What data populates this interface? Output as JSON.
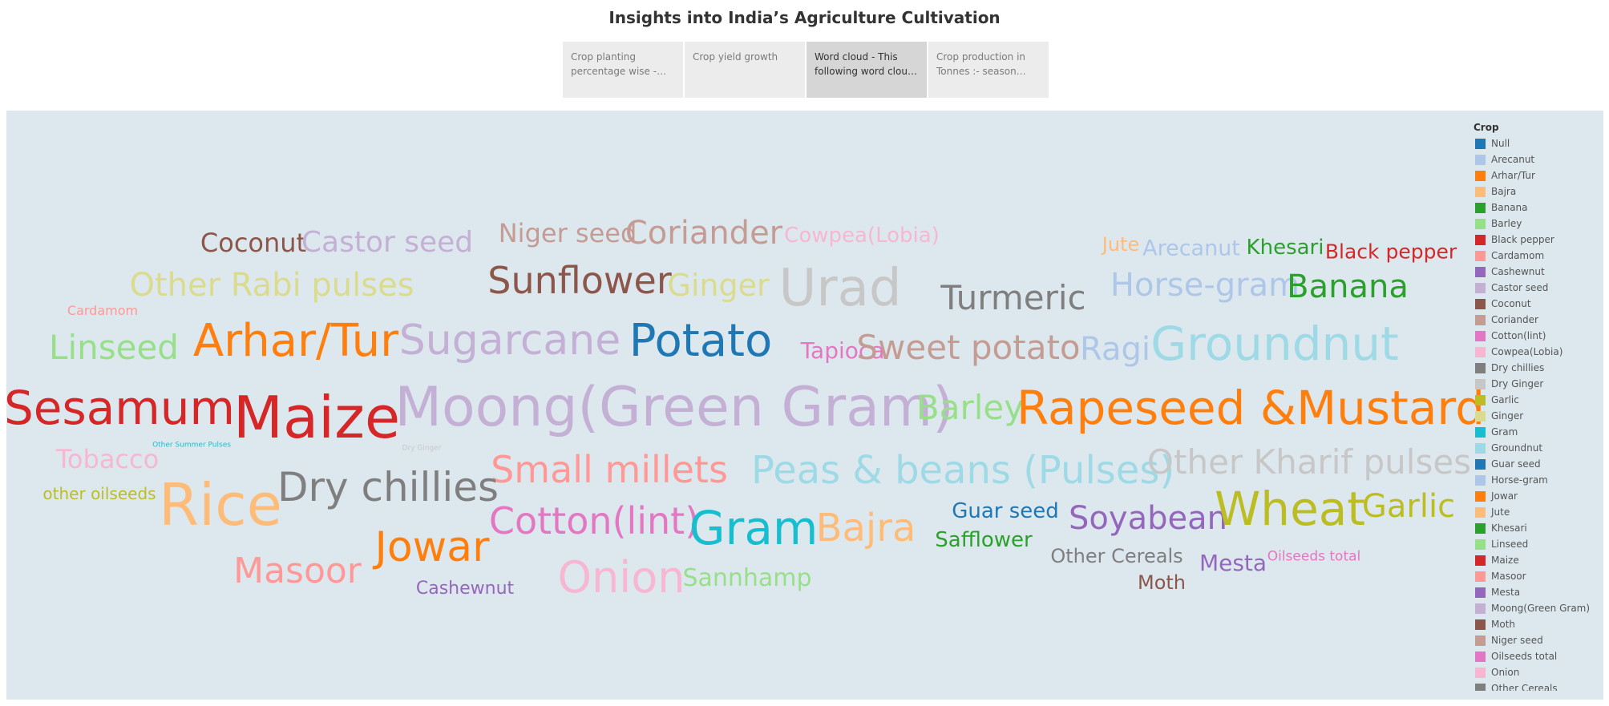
{
  "title": "Insights into India’s Agriculture Cultivation",
  "tabs": [
    {
      "label": "Crop planting percentage wise - This following",
      "active": false
    },
    {
      "label": "Crop yield growth",
      "active": false
    },
    {
      "label": "Word cloud - This following word cloud shows",
      "active": true
    },
    {
      "label": "Crop production in Tonnes :- season wise production",
      "active": false
    }
  ],
  "legend": {
    "title": "Crop",
    "items": [
      {
        "label": "Null",
        "color": "#1f77b4"
      },
      {
        "label": "Arecanut",
        "color": "#aec7e8"
      },
      {
        "label": "Arhar/Tur",
        "color": "#ff7f0e"
      },
      {
        "label": "Bajra",
        "color": "#ffbb78"
      },
      {
        "label": "Banana",
        "color": "#2ca02c"
      },
      {
        "label": "Barley",
        "color": "#98df8a"
      },
      {
        "label": "Black pepper",
        "color": "#d62728"
      },
      {
        "label": "Cardamom",
        "color": "#ff9896"
      },
      {
        "label": "Cashewnut",
        "color": "#9467bd"
      },
      {
        "label": "Castor seed",
        "color": "#c5b0d5"
      },
      {
        "label": "Coconut",
        "color": "#8c564b"
      },
      {
        "label": "Coriander",
        "color": "#c49c94"
      },
      {
        "label": "Cotton(lint)",
        "color": "#e377c2"
      },
      {
        "label": "Cowpea(Lobia)",
        "color": "#f7b6d2"
      },
      {
        "label": "Dry chillies",
        "color": "#7f7f7f"
      },
      {
        "label": "Dry Ginger",
        "color": "#c7c7c7"
      },
      {
        "label": "Garlic",
        "color": "#bcbd22"
      },
      {
        "label": "Ginger",
        "color": "#dbdb8d"
      },
      {
        "label": "Gram",
        "color": "#17becf"
      },
      {
        "label": "Groundnut",
        "color": "#9edae5"
      },
      {
        "label": "Guar seed",
        "color": "#1f77b4"
      },
      {
        "label": "Horse-gram",
        "color": "#aec7e8"
      },
      {
        "label": "Jowar",
        "color": "#ff7f0e"
      },
      {
        "label": "Jute",
        "color": "#ffbb78"
      },
      {
        "label": "Khesari",
        "color": "#2ca02c"
      },
      {
        "label": "Linseed",
        "color": "#98df8a"
      },
      {
        "label": "Maize",
        "color": "#d62728"
      },
      {
        "label": "Masoor",
        "color": "#ff9896"
      },
      {
        "label": "Mesta",
        "color": "#9467bd"
      },
      {
        "label": "Moong(Green Gram)",
        "color": "#c5b0d5"
      },
      {
        "label": "Moth",
        "color": "#8c564b"
      },
      {
        "label": "Niger seed",
        "color": "#c49c94"
      },
      {
        "label": "Oilseeds total",
        "color": "#e377c2"
      },
      {
        "label": "Onion",
        "color": "#f7b6d2"
      },
      {
        "label": "Other Cereals",
        "color": "#7f7f7f"
      }
    ]
  },
  "chart_data": {
    "type": "wordcloud",
    "title": "",
    "size_field": "relative word size",
    "color_field": "Crop",
    "words": [
      {
        "text": "Coconut",
        "color": "#8c564b",
        "size": 32
      },
      {
        "text": "Castor seed",
        "color": "#c5b0d5",
        "size": 36
      },
      {
        "text": "Niger seed",
        "color": "#c49c94",
        "size": 32
      },
      {
        "text": "Coriander",
        "color": "#c49c94",
        "size": 40
      },
      {
        "text": "Cowpea(Lobia)",
        "color": "#f7b6d2",
        "size": 26
      },
      {
        "text": "Jute",
        "color": "#ffbb78",
        "size": 24
      },
      {
        "text": "Arecanut",
        "color": "#aec7e8",
        "size": 27
      },
      {
        "text": "Khesari",
        "color": "#2ca02c",
        "size": 26
      },
      {
        "text": "Black pepper",
        "color": "#d62728",
        "size": 25
      },
      {
        "text": "Other Rabi pulses",
        "color": "#dbdb8d",
        "size": 40
      },
      {
        "text": "Sunflower",
        "color": "#8c564b",
        "size": 46
      },
      {
        "text": "Ginger",
        "color": "#dbdb8d",
        "size": 38
      },
      {
        "text": "Urad",
        "color": "#c7c7c7",
        "size": 64
      },
      {
        "text": "Turmeric",
        "color": "#7f7f7f",
        "size": 42
      },
      {
        "text": "Horse-gram",
        "color": "#aec7e8",
        "size": 40
      },
      {
        "text": "Banana",
        "color": "#2ca02c",
        "size": 40
      },
      {
        "text": "Cardamom",
        "color": "#ff9896",
        "size": 16
      },
      {
        "text": "Linseed",
        "color": "#98df8a",
        "size": 42
      },
      {
        "text": "Arhar/Tur",
        "color": "#ff7f0e",
        "size": 56
      },
      {
        "text": "Sugarcane",
        "color": "#c5b0d5",
        "size": 52
      },
      {
        "text": "Potato",
        "color": "#1f77b4",
        "size": 56
      },
      {
        "text": "Tapioca",
        "color": "#e377c2",
        "size": 28
      },
      {
        "text": "Sweet potato",
        "color": "#c49c94",
        "size": 42
      },
      {
        "text": "Ragi",
        "color": "#aec7e8",
        "size": 40
      },
      {
        "text": "Groundnut",
        "color": "#9edae5",
        "size": 58
      },
      {
        "text": "Sesamum",
        "color": "#d62728",
        "size": 58
      },
      {
        "text": "Maize",
        "color": "#d62728",
        "size": 72
      },
      {
        "text": "Moong(Green Gram)",
        "color": "#c5b0d5",
        "size": 68
      },
      {
        "text": "Barley",
        "color": "#98df8a",
        "size": 42
      },
      {
        "text": "Rapeseed &Mustard",
        "color": "#ff7f0e",
        "size": 58
      },
      {
        "text": "Tobacco",
        "color": "#f7b6d2",
        "size": 32
      },
      {
        "text": "Other Summer Pulses",
        "color": "#17becf",
        "size": 9
      },
      {
        "text": "Dry Ginger",
        "color": "#c7c7c7",
        "size": 9
      },
      {
        "text": "Small millets",
        "color": "#ff9896",
        "size": 46
      },
      {
        "text": "Peas & beans (Pulses)",
        "color": "#9edae5",
        "size": 48
      },
      {
        "text": "Other Kharif pulses",
        "color": "#c7c7c7",
        "size": 42
      },
      {
        "text": "other oilseeds",
        "color": "#bcbd22",
        "size": 20
      },
      {
        "text": "Rice",
        "color": "#ffbb78",
        "size": 72
      },
      {
        "text": "Dry chillies",
        "color": "#7f7f7f",
        "size": 50
      },
      {
        "text": "Cotton(lint)",
        "color": "#e377c2",
        "size": 46
      },
      {
        "text": "Gram",
        "color": "#17becf",
        "size": 58
      },
      {
        "text": "Bajra",
        "color": "#ffbb78",
        "size": 48
      },
      {
        "text": "Guar seed",
        "color": "#1f77b4",
        "size": 26
      },
      {
        "text": "Safflower",
        "color": "#2ca02c",
        "size": 26
      },
      {
        "text": "Soyabean",
        "color": "#9467bd",
        "size": 40
      },
      {
        "text": "Wheat",
        "color": "#bcbd22",
        "size": 58
      },
      {
        "text": "Garlic",
        "color": "#bcbd22",
        "size": 40
      },
      {
        "text": "Jowar",
        "color": "#ff7f0e",
        "size": 52
      },
      {
        "text": "Masoor",
        "color": "#ff9896",
        "size": 44
      },
      {
        "text": "Onion",
        "color": "#f7b6d2",
        "size": 54
      },
      {
        "text": "Sannhamp",
        "color": "#98df8a",
        "size": 30
      },
      {
        "text": "Other Cereals",
        "color": "#7f7f7f",
        "size": 24
      },
      {
        "text": "Mesta",
        "color": "#9467bd",
        "size": 28
      },
      {
        "text": "Oilseeds total",
        "color": "#e377c2",
        "size": 17
      },
      {
        "text": "Cashewnut",
        "color": "#9467bd",
        "size": 22
      },
      {
        "text": "Moth",
        "color": "#8c564b",
        "size": 24
      }
    ]
  }
}
